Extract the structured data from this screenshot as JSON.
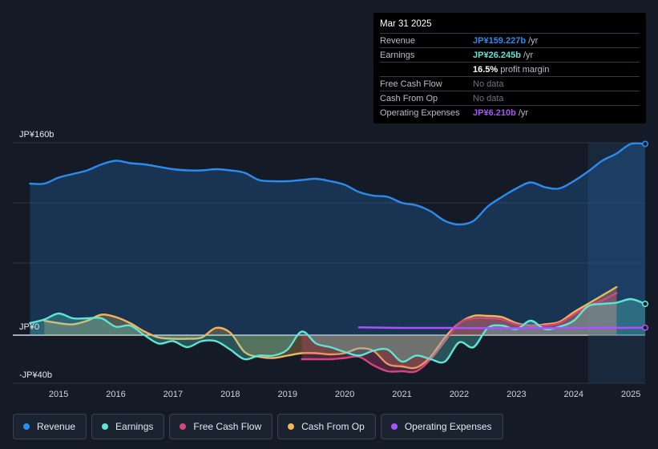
{
  "chart_data": {
    "type": "line",
    "title": "",
    "xlabel": "",
    "ylabel": "",
    "x_ticks": [
      "2015",
      "2016",
      "2017",
      "2018",
      "2019",
      "2020",
      "2021",
      "2022",
      "2023",
      "2024",
      "2025"
    ],
    "y_ticks": [
      {
        "value": 160,
        "label": "JP¥160b"
      },
      {
        "value": 0,
        "label": "JP¥0"
      },
      {
        "value": -40,
        "label": "-JP¥40b"
      }
    ],
    "xlim": [
      2014.2,
      2025.25
    ],
    "ylim": [
      -40,
      160
    ],
    "highlight_start": 2024.25,
    "series": [
      {
        "name": "Revenue",
        "color": "#2b8cf0",
        "fill": true,
        "end_marker": true,
        "points": [
          [
            2014.5,
            126
          ],
          [
            2014.75,
            126
          ],
          [
            2015.0,
            131
          ],
          [
            2015.25,
            134
          ],
          [
            2015.5,
            137
          ],
          [
            2015.75,
            142
          ],
          [
            2016.0,
            145
          ],
          [
            2016.25,
            143
          ],
          [
            2016.5,
            142
          ],
          [
            2016.75,
            140
          ],
          [
            2017.0,
            138
          ],
          [
            2017.25,
            137
          ],
          [
            2017.5,
            137
          ],
          [
            2017.75,
            138
          ],
          [
            2018.0,
            137
          ],
          [
            2018.25,
            135
          ],
          [
            2018.5,
            129
          ],
          [
            2018.75,
            128
          ],
          [
            2019.0,
            128
          ],
          [
            2019.25,
            129
          ],
          [
            2019.5,
            130
          ],
          [
            2019.75,
            128
          ],
          [
            2020.0,
            125
          ],
          [
            2020.25,
            119
          ],
          [
            2020.5,
            116
          ],
          [
            2020.75,
            115
          ],
          [
            2021.0,
            110
          ],
          [
            2021.25,
            108
          ],
          [
            2021.5,
            103
          ],
          [
            2021.75,
            95
          ],
          [
            2022.0,
            92
          ],
          [
            2022.25,
            95
          ],
          [
            2022.5,
            107
          ],
          [
            2022.75,
            115
          ],
          [
            2023.0,
            122
          ],
          [
            2023.25,
            127
          ],
          [
            2023.5,
            123
          ],
          [
            2023.75,
            122
          ],
          [
            2024.0,
            128
          ],
          [
            2024.25,
            136
          ],
          [
            2024.5,
            145
          ],
          [
            2024.75,
            151
          ],
          [
            2025.0,
            159
          ],
          [
            2025.25,
            159
          ]
        ]
      },
      {
        "name": "Earnings",
        "color": "#5ee6d5",
        "fill": true,
        "end_marker": true,
        "points": [
          [
            2014.5,
            10
          ],
          [
            2014.75,
            13
          ],
          [
            2015.0,
            18
          ],
          [
            2015.25,
            14
          ],
          [
            2015.5,
            14
          ],
          [
            2015.75,
            14
          ],
          [
            2016.0,
            7
          ],
          [
            2016.25,
            8
          ],
          [
            2016.5,
            0
          ],
          [
            2016.75,
            -7
          ],
          [
            2017.0,
            -5
          ],
          [
            2017.25,
            -10
          ],
          [
            2017.5,
            -5
          ],
          [
            2017.75,
            -5
          ],
          [
            2018.0,
            -12
          ],
          [
            2018.25,
            -20
          ],
          [
            2018.5,
            -17
          ],
          [
            2018.75,
            -17
          ],
          [
            2019.0,
            -12
          ],
          [
            2019.25,
            3
          ],
          [
            2019.5,
            -7
          ],
          [
            2019.75,
            -10
          ],
          [
            2020.0,
            -14
          ],
          [
            2020.25,
            -17
          ],
          [
            2020.5,
            -13
          ],
          [
            2020.75,
            -12
          ],
          [
            2021.0,
            -22
          ],
          [
            2021.25,
            -17
          ],
          [
            2021.5,
            -20
          ],
          [
            2021.75,
            -22
          ],
          [
            2022.0,
            -6
          ],
          [
            2022.25,
            -10
          ],
          [
            2022.5,
            6
          ],
          [
            2022.75,
            8
          ],
          [
            2023.0,
            5
          ],
          [
            2023.25,
            12
          ],
          [
            2023.5,
            5
          ],
          [
            2023.75,
            7
          ],
          [
            2024.0,
            12
          ],
          [
            2024.25,
            24
          ],
          [
            2024.5,
            26
          ],
          [
            2024.75,
            27
          ],
          [
            2025.0,
            30
          ],
          [
            2025.25,
            26
          ]
        ]
      },
      {
        "name": "Free Cash Flow",
        "color": "#d6457c",
        "fill": true,
        "end_marker": false,
        "points": [
          [
            2019.25,
            -20
          ],
          [
            2019.5,
            -20
          ],
          [
            2019.75,
            -20
          ],
          [
            2020.0,
            -19
          ],
          [
            2020.25,
            -18
          ],
          [
            2020.5,
            -25
          ],
          [
            2020.75,
            -30
          ],
          [
            2021.0,
            -30
          ],
          [
            2021.25,
            -30
          ],
          [
            2021.5,
            -20
          ],
          [
            2021.75,
            -5
          ],
          [
            2022.0,
            10
          ],
          [
            2022.25,
            14
          ],
          [
            2022.5,
            14
          ],
          [
            2022.75,
            13
          ],
          [
            2023.0,
            9
          ],
          [
            2023.25,
            8
          ],
          [
            2023.5,
            8
          ],
          [
            2023.75,
            10
          ],
          [
            2024.0,
            17
          ],
          [
            2024.25,
            24
          ],
          [
            2024.5,
            29
          ],
          [
            2024.75,
            35
          ]
        ]
      },
      {
        "name": "Cash From Op",
        "color": "#f1b55a",
        "fill": true,
        "end_marker": false,
        "points": [
          [
            2014.75,
            12
          ],
          [
            2015.0,
            10
          ],
          [
            2015.25,
            9
          ],
          [
            2015.5,
            12
          ],
          [
            2015.75,
            17
          ],
          [
            2016.0,
            15
          ],
          [
            2016.25,
            10
          ],
          [
            2016.5,
            3
          ],
          [
            2016.75,
            -2
          ],
          [
            2017.0,
            -3
          ],
          [
            2017.25,
            -3
          ],
          [
            2017.5,
            -2
          ],
          [
            2017.75,
            6
          ],
          [
            2018.0,
            2
          ],
          [
            2018.25,
            -14
          ],
          [
            2018.5,
            -18
          ],
          [
            2018.75,
            -19
          ],
          [
            2019.0,
            -17
          ],
          [
            2019.25,
            -15
          ],
          [
            2019.5,
            -15
          ],
          [
            2019.75,
            -16
          ],
          [
            2020.0,
            -15
          ],
          [
            2020.25,
            -11
          ],
          [
            2020.5,
            -13
          ],
          [
            2020.75,
            -24
          ],
          [
            2021.0,
            -26
          ],
          [
            2021.25,
            -27
          ],
          [
            2021.5,
            -18
          ],
          [
            2021.75,
            -2
          ],
          [
            2022.0,
            10
          ],
          [
            2022.25,
            16
          ],
          [
            2022.5,
            16
          ],
          [
            2022.75,
            15
          ],
          [
            2023.0,
            10
          ],
          [
            2023.25,
            8
          ],
          [
            2023.5,
            9
          ],
          [
            2023.75,
            11
          ],
          [
            2024.0,
            19
          ],
          [
            2024.25,
            26
          ],
          [
            2024.5,
            33
          ],
          [
            2024.75,
            40
          ]
        ]
      },
      {
        "name": "Operating Expenses",
        "color": "#a855f7",
        "fill": false,
        "end_marker": true,
        "points": [
          [
            2020.25,
            6.5
          ],
          [
            2021.0,
            6.0
          ],
          [
            2021.75,
            6.0
          ],
          [
            2022.5,
            5.8
          ],
          [
            2023.25,
            5.8
          ],
          [
            2024.0,
            5.9
          ],
          [
            2024.75,
            6.1
          ],
          [
            2025.25,
            6.2
          ]
        ]
      }
    ]
  },
  "tooltip": {
    "date": "Mar 31 2025",
    "rows": [
      {
        "label": "Revenue",
        "value": "JP¥159.227b",
        "unit": "/yr",
        "color": "#2b8cf0"
      },
      {
        "label": "Earnings",
        "value": "JP¥26.245b",
        "unit": "/yr",
        "color": "#5ee6d5"
      },
      {
        "label": "",
        "value": "16.5%",
        "unit": "profit margin",
        "color": "#ffffff"
      },
      {
        "label": "Free Cash Flow",
        "value": "No data",
        "unit": "",
        "color": "#6b7280",
        "plain": true
      },
      {
        "label": "Cash From Op",
        "value": "No data",
        "unit": "",
        "color": "#6b7280",
        "plain": true
      },
      {
        "label": "Operating Expenses",
        "value": "JP¥6.210b",
        "unit": "/yr",
        "color": "#a855f7"
      }
    ]
  },
  "legend": [
    {
      "label": "Revenue",
      "color": "#2b8cf0"
    },
    {
      "label": "Earnings",
      "color": "#5ee6d5"
    },
    {
      "label": "Free Cash Flow",
      "color": "#d6457c"
    },
    {
      "label": "Cash From Op",
      "color": "#f1b55a"
    },
    {
      "label": "Operating Expenses",
      "color": "#a855f7"
    }
  ]
}
